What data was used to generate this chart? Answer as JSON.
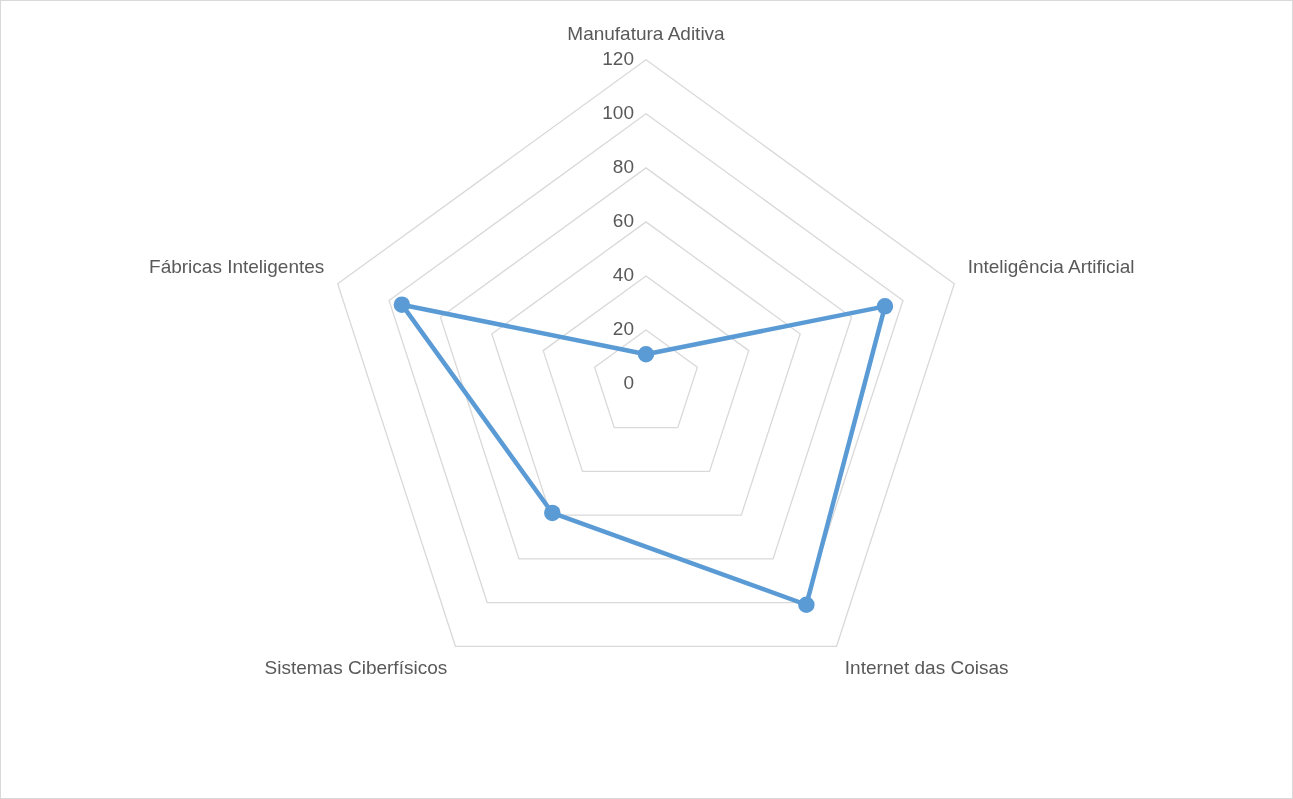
{
  "chart_data": {
    "type": "radar",
    "categories": [
      "Manufatura Aditiva",
      "Inteligência Artificial",
      "Internet das Coisas",
      "Sistemas Ciberfísicos",
      "Fábricas Inteligentes"
    ],
    "series": [
      {
        "color": "#5b9bd5",
        "values": [
          11,
          93,
          101,
          59,
          95
        ]
      }
    ],
    "ylim": [
      0,
      120
    ],
    "yticks": [
      0,
      20,
      40,
      60,
      80,
      100,
      120
    ],
    "grid": true,
    "marker": "circle"
  }
}
